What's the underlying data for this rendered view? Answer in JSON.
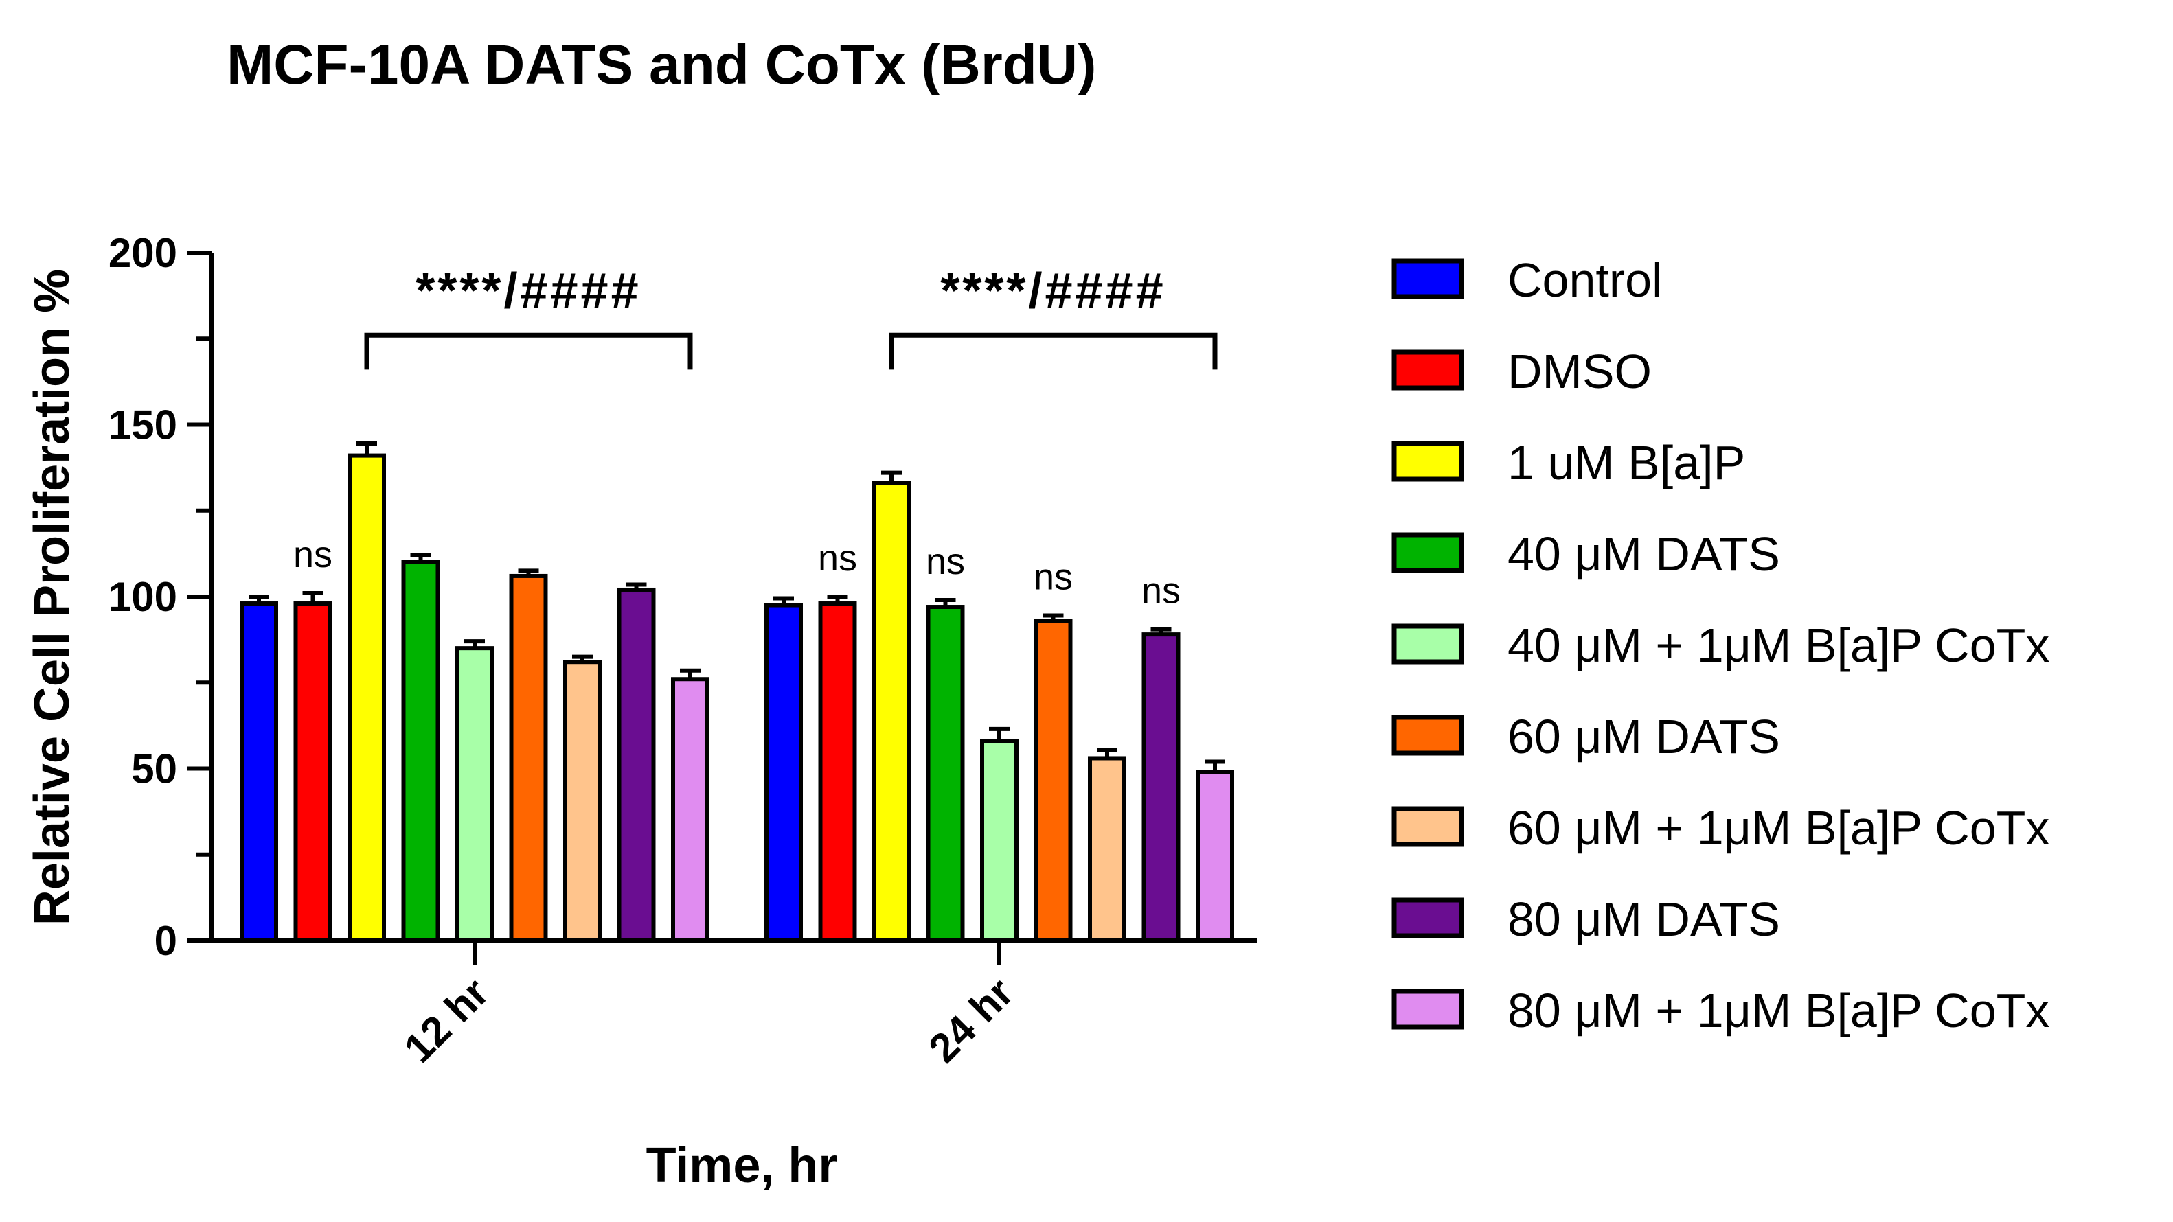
{
  "chart_data": {
    "type": "bar",
    "title": "MCF-10A DATS and CoTx (BrdU)",
    "xlabel": "Time, hr",
    "ylabel": "Relative Cell Proliferation %",
    "ylim": [
      0,
      200
    ],
    "yticks": [
      0,
      50,
      100,
      150,
      200
    ],
    "grid": false,
    "legend_position": "right",
    "categories": [
      "12 hr",
      "24 hr"
    ],
    "series": [
      {
        "name": "Control",
        "color": "#0000ff",
        "values": [
          98,
          97.5
        ],
        "errors": [
          2,
          2
        ]
      },
      {
        "name": "DMSO",
        "color": "#ff0000",
        "values": [
          98,
          98
        ],
        "errors": [
          3,
          2
        ]
      },
      {
        "name": "1 uM B[a]P",
        "color": "#ffff00",
        "values": [
          141,
          133
        ],
        "errors": [
          3.5,
          3
        ]
      },
      {
        "name": "40 μM DATS",
        "color": "#00b300",
        "values": [
          110,
          97
        ],
        "errors": [
          2,
          2
        ]
      },
      {
        "name": "40 μM + 1μM B[a]P CoTx",
        "color": "#a8ffa8",
        "values": [
          85,
          58
        ],
        "errors": [
          2,
          3.5
        ]
      },
      {
        "name": "60 μM DATS",
        "color": "#ff6600",
        "values": [
          106,
          93
        ],
        "errors": [
          1.5,
          1.5
        ]
      },
      {
        "name": "60 μM + 1μM B[a]P CoTx",
        "color": "#ffc48c",
        "values": [
          81,
          53
        ],
        "errors": [
          1.5,
          2.5
        ]
      },
      {
        "name": "80 μM DATS",
        "color": "#6a0d91",
        "values": [
          102,
          89
        ],
        "errors": [
          1.5,
          1.5
        ]
      },
      {
        "name": "80 μM + 1μM B[a]P CoTx",
        "color": "#e08cf0",
        "values": [
          76,
          49
        ],
        "errors": [
          2.5,
          3
        ]
      }
    ],
    "annotations": {
      "ns": [
        {
          "category": 0,
          "series": 1,
          "text": "ns"
        },
        {
          "category": 1,
          "series": 1,
          "text": "ns"
        },
        {
          "category": 1,
          "series": 3,
          "text": "ns"
        },
        {
          "category": 1,
          "series": 5,
          "text": "ns"
        },
        {
          "category": 1,
          "series": 7,
          "text": "ns"
        }
      ],
      "brackets": [
        {
          "category": 0,
          "from_series": 2,
          "to_series": 8,
          "text": "****/####"
        },
        {
          "category": 1,
          "from_series": 2,
          "to_series": 8,
          "text": "****/####"
        }
      ]
    }
  }
}
